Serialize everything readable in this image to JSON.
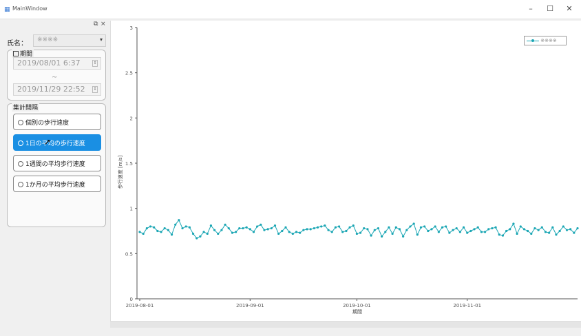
{
  "window": {
    "title": "MainWindow",
    "minimize": "–",
    "maximize": "☐",
    "close": "✕"
  },
  "dock": {
    "float_icon": "⧉",
    "close_icon": "×"
  },
  "name": {
    "label": "氏名：",
    "value": "※※※※",
    "arrow": "▾"
  },
  "period": {
    "title": "期間",
    "start": "2019/08/01 6:37",
    "separator": "~",
    "end": "2019/11/29 22:52",
    "spin": "⇕"
  },
  "aggregation": {
    "title": "集計間隔",
    "options": [
      {
        "label": "個別の歩行速度",
        "selected": false
      },
      {
        "label": "1日の平均の歩行速度",
        "selected": true
      },
      {
        "label": "1週間の平均歩行速度",
        "selected": false
      },
      {
        "label": "1か月の平均歩行速度",
        "selected": false
      }
    ]
  },
  "colors": {
    "accent": "#1a8fe3",
    "series": "#1ba6b4"
  },
  "chart_data": {
    "type": "line",
    "legend": "※※※※",
    "legend_position": "top-right",
    "xlabel": "期間",
    "ylabel": "歩行速度 [m/s]",
    "ylim": [
      0,
      3
    ],
    "yticks": [
      "0",
      "0.5",
      "1",
      "1.5",
      "2",
      "2.5",
      "3"
    ],
    "xticks": [
      "2019-08-01",
      "2019-09-01",
      "2019-10-01",
      "2019-11-01"
    ],
    "grid": false,
    "series": [
      {
        "name": "※※※※",
        "values": [
          0.74,
          0.72,
          0.78,
          0.8,
          0.79,
          0.75,
          0.74,
          0.78,
          0.76,
          0.71,
          0.82,
          0.87,
          0.78,
          0.8,
          0.79,
          0.72,
          0.67,
          0.69,
          0.74,
          0.72,
          0.81,
          0.76,
          0.72,
          0.76,
          0.82,
          0.78,
          0.73,
          0.74,
          0.78,
          0.78,
          0.79,
          0.77,
          0.74,
          0.8,
          0.82,
          0.76,
          0.77,
          0.78,
          0.81,
          0.72,
          0.75,
          0.79,
          0.74,
          0.72,
          0.74,
          0.73,
          0.76,
          0.77,
          0.77,
          0.78,
          0.79,
          0.8,
          0.81,
          0.76,
          0.74,
          0.79,
          0.8,
          0.74,
          0.75,
          0.79,
          0.81,
          0.72,
          0.73,
          0.78,
          0.77,
          0.7,
          0.76,
          0.78,
          0.69,
          0.74,
          0.79,
          0.72,
          0.79,
          0.77,
          0.69,
          0.76,
          0.8,
          0.83,
          0.71,
          0.79,
          0.8,
          0.75,
          0.77,
          0.8,
          0.74,
          0.79,
          0.8,
          0.73,
          0.76,
          0.78,
          0.74,
          0.79,
          0.73,
          0.75,
          0.77,
          0.79,
          0.74,
          0.74,
          0.77,
          0.78,
          0.79,
          0.71,
          0.7,
          0.75,
          0.77,
          0.83,
          0.72,
          0.8,
          0.77,
          0.75,
          0.72,
          0.78,
          0.76,
          0.79,
          0.74,
          0.73,
          0.79,
          0.71,
          0.75,
          0.8,
          0.76,
          0.77,
          0.73,
          0.78
        ]
      }
    ]
  }
}
